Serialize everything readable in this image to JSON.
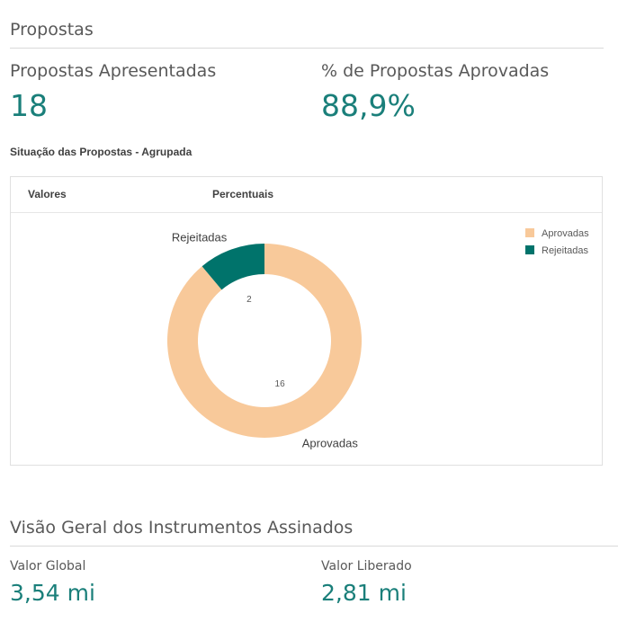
{
  "propostas": {
    "title": "Propostas",
    "kpis": {
      "apresentadas": {
        "label": "Propostas Apresentadas",
        "value": "18"
      },
      "aprovadas_pct": {
        "label": "% de Propostas Aprovadas",
        "value": "88,9%"
      }
    }
  },
  "chart": {
    "tabs": [
      {
        "label": "Valores"
      },
      {
        "label": "Percentuais"
      }
    ]
  },
  "chart_data": {
    "type": "pie",
    "title": "Situação das Propostas - Agrupada",
    "donut": true,
    "categories": [
      "Aprovadas",
      "Rejeitadas"
    ],
    "values": [
      16,
      2
    ],
    "value_labels": [
      "16",
      "2"
    ],
    "colors": [
      "#f8c99a",
      "#00736b"
    ],
    "legend_position": "top-right",
    "legend": [
      "Aprovadas",
      "Rejeitadas"
    ]
  },
  "visao_geral": {
    "title": "Visão Geral dos Instrumentos Assinados",
    "kpis": {
      "valor_global": {
        "label": "Valor Global",
        "value": "3,54 mi"
      },
      "valor_liberado": {
        "label": "Valor Liberado",
        "value": "2,81 mi"
      }
    }
  }
}
